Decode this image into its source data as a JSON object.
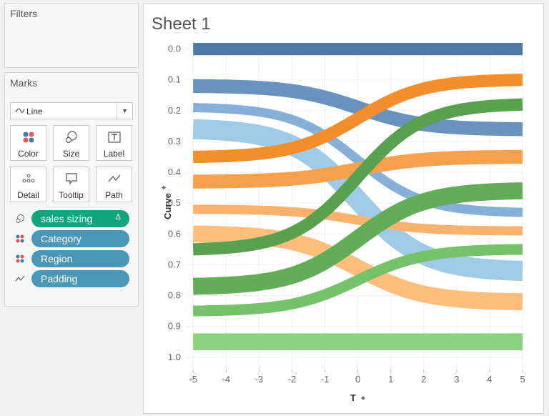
{
  "filters": {
    "title": "Filters"
  },
  "marks": {
    "title": "Marks",
    "mark_type": "Line",
    "buttons": [
      {
        "label": "Color",
        "icon": "color-dots-icon"
      },
      {
        "label": "Size",
        "icon": "size-icon"
      },
      {
        "label": "Label",
        "icon": "label-icon"
      },
      {
        "label": "Detail",
        "icon": "detail-dots-icon"
      },
      {
        "label": "Tooltip",
        "icon": "tooltip-icon"
      },
      {
        "label": "Path",
        "icon": "path-icon"
      }
    ],
    "pills": [
      {
        "label": "sales sizing",
        "icon": "size-icon",
        "delta": "Δ",
        "color": "#13a57f"
      },
      {
        "label": "Category",
        "icon": "color-dots-icon",
        "color": "#4a97b8"
      },
      {
        "label": "Region",
        "icon": "color-dots-icon",
        "color": "#4a97b8"
      },
      {
        "label": "Padding",
        "icon": "path-icon",
        "color": "#4a97b8"
      }
    ]
  },
  "sheet": {
    "title": "Sheet 1"
  },
  "chart_data": {
    "type": "line",
    "title": "Sheet 1",
    "xlabel": "T",
    "ylabel": "Curve",
    "xlim": [
      -5.2,
      5
    ],
    "ylim": [
      1.04,
      -0.02
    ],
    "y_reversed": true,
    "x_ticks": [
      "-5",
      "-4",
      "-3",
      "-2",
      "-1",
      "0",
      "1",
      "2",
      "3",
      "4",
      "5"
    ],
    "y_ticks": [
      "0.0",
      "0.1",
      "0.2",
      "0.3",
      "0.4",
      "0.5",
      "0.6",
      "0.7",
      "0.8",
      "0.9",
      "1.0"
    ],
    "x_tick_values": [
      -5,
      -4,
      -3,
      -2,
      -1,
      0,
      1,
      2,
      3,
      4,
      5
    ],
    "y_tick_values": [
      0,
      0.1,
      0.2,
      0.3,
      0.4,
      0.5,
      0.6,
      0.7,
      0.8,
      0.9,
      1.0
    ],
    "grid": true,
    "legend": "none",
    "series": [
      {
        "start": 0.0,
        "end": 0.0,
        "width": 0.04,
        "color": "#4e79a7"
      },
      {
        "start": 0.12,
        "end": 0.26,
        "width": 0.045,
        "color": "#6a92be"
      },
      {
        "start": 0.19,
        "end": 0.53,
        "width": 0.03,
        "color": "#87b0d8"
      },
      {
        "start": 0.26,
        "end": 0.72,
        "width": 0.065,
        "color": "#a0cbe8"
      },
      {
        "start": 0.35,
        "end": 0.1,
        "width": 0.04,
        "color": "#f28e2b"
      },
      {
        "start": 0.43,
        "end": 0.35,
        "width": 0.045,
        "color": "#f5a04c"
      },
      {
        "start": 0.52,
        "end": 0.59,
        "width": 0.03,
        "color": "#f8b26d"
      },
      {
        "start": 0.6,
        "end": 0.82,
        "width": 0.055,
        "color": "#ffbe7d"
      },
      {
        "start": 0.65,
        "end": 0.18,
        "width": 0.04,
        "color": "#59a14f"
      },
      {
        "start": 0.77,
        "end": 0.46,
        "width": 0.055,
        "color": "#64ad58"
      },
      {
        "start": 0.85,
        "end": 0.65,
        "width": 0.035,
        "color": "#76c26a"
      },
      {
        "start": 0.95,
        "end": 0.95,
        "width": 0.055,
        "color": "#8cd17d"
      }
    ]
  }
}
